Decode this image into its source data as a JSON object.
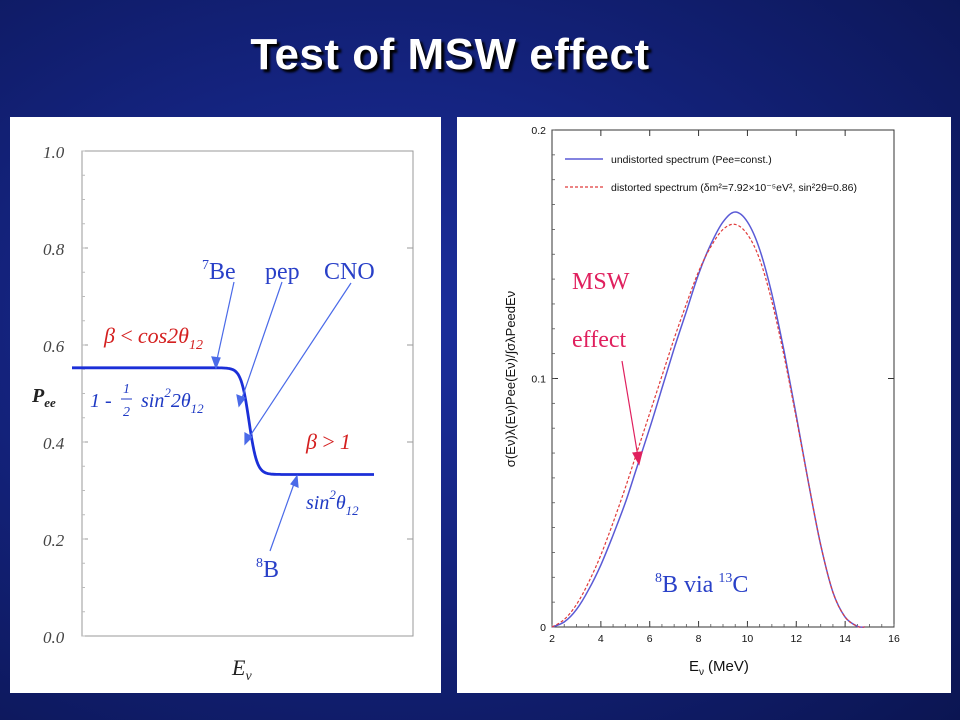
{
  "title": "Test of MSW effect",
  "chart_data": [
    {
      "type": "line",
      "ylabel": "Pee",
      "ylabel_main": "P",
      "ylabel_sub": "ee",
      "xlabel": "Eν",
      "xlabel_main": "E",
      "xlabel_sub": "ν",
      "ylim": [
        0.0,
        1.0
      ],
      "yticks": [
        "0.0",
        "0.2",
        "0.4",
        "0.6",
        "0.8",
        "1.0"
      ],
      "ytick_values": [
        0.0,
        0.2,
        0.4,
        0.6,
        0.8,
        1.0
      ],
      "curve": {
        "low_level": 0.553,
        "high_level": 0.333,
        "transition": [
          0.4,
          0.6
        ]
      },
      "annotations": {
        "be7": {
          "sup": "7",
          "text": "Be"
        },
        "pep": "pep",
        "cno": "CNO",
        "b8": {
          "sup": "8",
          "text": "B"
        },
        "beta_low": {
          "beta": "β",
          "lt": "<",
          "cos": "cos2θ",
          "sub": "12"
        },
        "formula_low": {
          "one": "1 -",
          "num": "1",
          "den": "2",
          "sin": "sin",
          "sup": "2",
          "theta": "2θ",
          "sub": "12"
        },
        "beta_high": {
          "beta": "β",
          "gt": ">",
          "one": "1"
        },
        "formula_high": {
          "sin": "sin",
          "sup": "2",
          "theta": "θ",
          "sub": "12"
        }
      }
    },
    {
      "type": "line",
      "xlabel": "Eν (MeV)",
      "xlabel_main": "E",
      "xlabel_sub": "ν",
      "xlabel_unit": "(MeV)",
      "ylabel": "σ(Eν)λ(Eν)Pee(Eν)/∫σλPeedEν",
      "xlim": [
        2,
        16
      ],
      "ylim": [
        0,
        0.2
      ],
      "xticks": [
        2,
        4,
        6,
        8,
        10,
        12,
        14,
        16
      ],
      "yticks": [
        0,
        0.1,
        0.2
      ],
      "ytick_labels": [
        "0",
        "0.1",
        "0.2"
      ],
      "legend_position": "top-right",
      "series": [
        {
          "name": "undistorted spectrum (Pee=const.)",
          "color": "#5a5ad6",
          "style": "solid",
          "x": [
            2.0,
            2.5,
            3.0,
            3.5,
            4.0,
            4.5,
            5.0,
            5.5,
            6.0,
            6.5,
            7.0,
            7.5,
            8.0,
            8.5,
            9.0,
            9.5,
            10.0,
            10.5,
            11.0,
            11.5,
            12.0,
            12.5,
            13.0,
            13.5,
            14.0,
            14.5,
            14.8
          ],
          "y": [
            0.0,
            0.002,
            0.007,
            0.015,
            0.025,
            0.037,
            0.05,
            0.065,
            0.08,
            0.096,
            0.112,
            0.127,
            0.142,
            0.154,
            0.163,
            0.167,
            0.163,
            0.152,
            0.134,
            0.111,
            0.085,
            0.058,
            0.033,
            0.014,
            0.004,
            0.0003,
            0.0
          ]
        },
        {
          "name": "distorted spectrum (δm²=7.92×10⁻⁵eV², sin²2θ=0.86)",
          "color": "#e03a3a",
          "style": "dashed",
          "x": [
            2.0,
            2.5,
            3.0,
            3.5,
            4.0,
            4.5,
            5.0,
            5.5,
            6.0,
            6.5,
            7.0,
            7.5,
            8.0,
            8.5,
            9.0,
            9.5,
            10.0,
            10.5,
            11.0,
            11.5,
            12.0,
            12.5,
            13.0,
            13.5,
            14.0,
            14.5,
            14.8
          ],
          "y": [
            0.0,
            0.003,
            0.009,
            0.018,
            0.029,
            0.042,
            0.056,
            0.071,
            0.086,
            0.101,
            0.116,
            0.13,
            0.143,
            0.153,
            0.16,
            0.162,
            0.158,
            0.148,
            0.131,
            0.109,
            0.084,
            0.058,
            0.033,
            0.014,
            0.004,
            0.0003,
            0.0
          ]
        }
      ],
      "annotations": {
        "msw_line1": "MSW",
        "msw_line2": "effect",
        "b8_sup": "8",
        "b8_text": "B via",
        "c13_sup": "13",
        "c13_text": "C"
      }
    }
  ]
}
